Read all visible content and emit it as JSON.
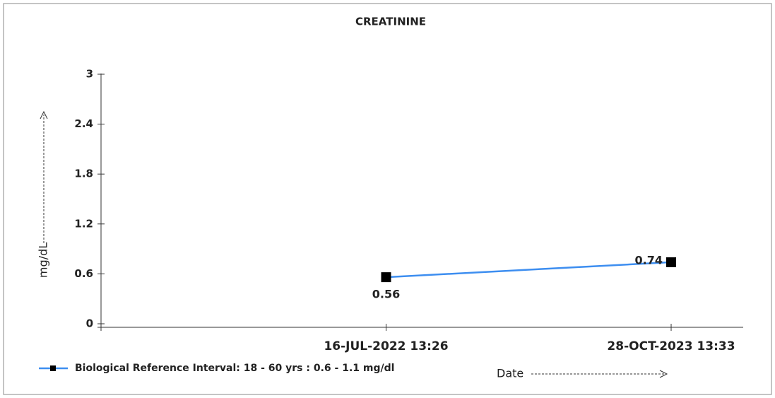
{
  "chart_data": {
    "type": "line",
    "title": "CREATININE",
    "y_label": "mg/dL",
    "x_label": "Date",
    "categories": [
      null,
      "16-JUL-2022 13:26",
      "28-OCT-2023 13:33"
    ],
    "series": [
      {
        "name": "Biological Reference Interval: 18 - 60 yrs : 0.6 - 1.1 mg/dl",
        "color": "#3d8ef0",
        "marker_color": "#000000",
        "values": [
          null,
          0.56,
          0.74
        ]
      }
    ],
    "ylim": [
      0,
      3
    ],
    "yticks": [
      0,
      0.6,
      1.2,
      1.8,
      2.4,
      3
    ],
    "grid": false
  }
}
